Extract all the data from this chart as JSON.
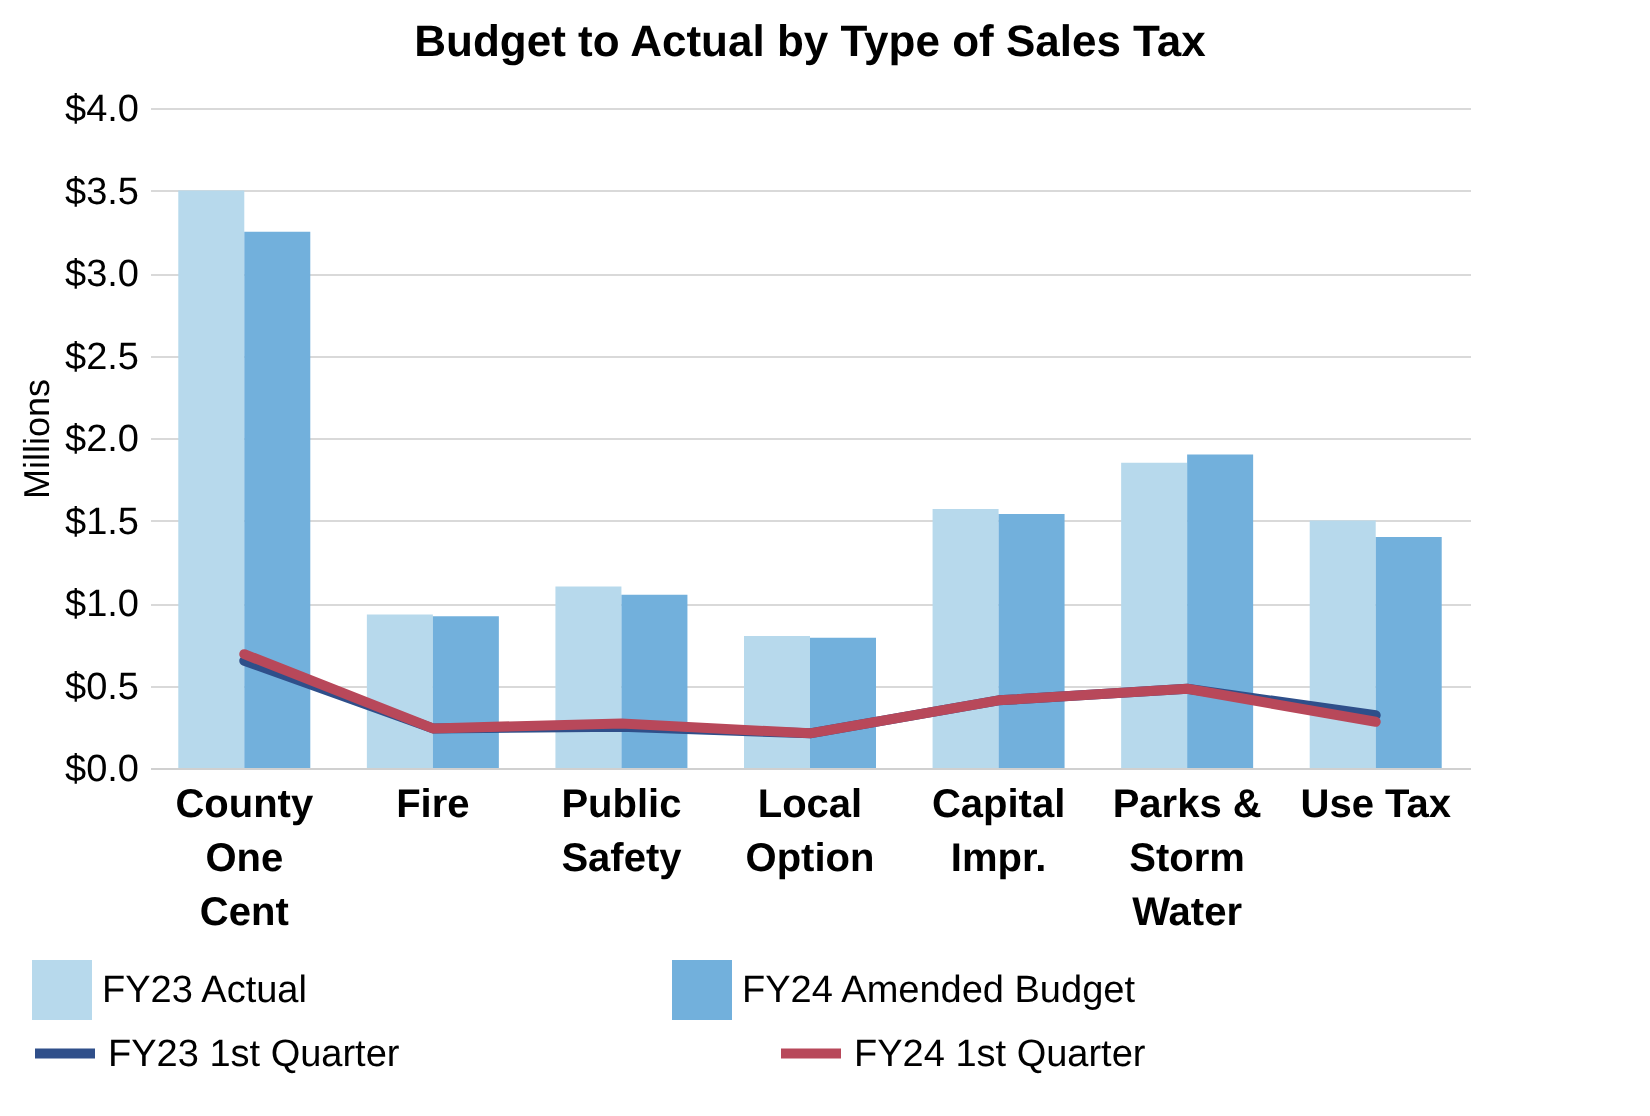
{
  "chart_data": {
    "type": "bar",
    "title": "Budget to Actual by Type of Sales Tax",
    "ylabel": "Millions",
    "categories": [
      "County One Cent",
      "Fire",
      "Public Safety",
      "Local Option",
      "Capital Impr.",
      "Parks & Storm Water",
      "Use Tax"
    ],
    "series": [
      {
        "name": "FY23 Actual",
        "color": "#b7d9ec",
        "values": [
          3.5,
          0.93,
          1.1,
          0.8,
          1.57,
          1.85,
          1.5
        ]
      },
      {
        "name": "FY24 Amended Budget",
        "color": "#72b0dc",
        "values": [
          3.25,
          0.92,
          1.05,
          0.79,
          1.54,
          1.9,
          1.4
        ]
      },
      {
        "name": "FY23 1st Quarter",
        "type": "line",
        "color": "#2f4f8a",
        "values": [
          0.65,
          0.24,
          0.25,
          0.21,
          0.41,
          0.48,
          0.32
        ]
      },
      {
        "name": "FY24 1st Quarter",
        "type": "line",
        "color": "#b8485a",
        "values": [
          0.69,
          0.24,
          0.27,
          0.21,
          0.41,
          0.48,
          0.28
        ]
      }
    ],
    "ylim": [
      0,
      4
    ],
    "yticks": [
      {
        "value": 0,
        "label": "$0.0"
      },
      {
        "value": 0.5,
        "label": "$0.5"
      },
      {
        "value": 1,
        "label": "$1.0"
      },
      {
        "value": 1.5,
        "label": "$1.5"
      },
      {
        "value": 2,
        "label": "$2.0"
      },
      {
        "value": 2.5,
        "label": "$2.5"
      },
      {
        "value": 3,
        "label": "$3.0"
      },
      {
        "value": 3.5,
        "label": "$3.5"
      },
      {
        "value": 4,
        "label": "$4.0"
      }
    ],
    "grid": "y",
    "legend": "bottom",
    "marker": "none",
    "line_style": "solid"
  }
}
